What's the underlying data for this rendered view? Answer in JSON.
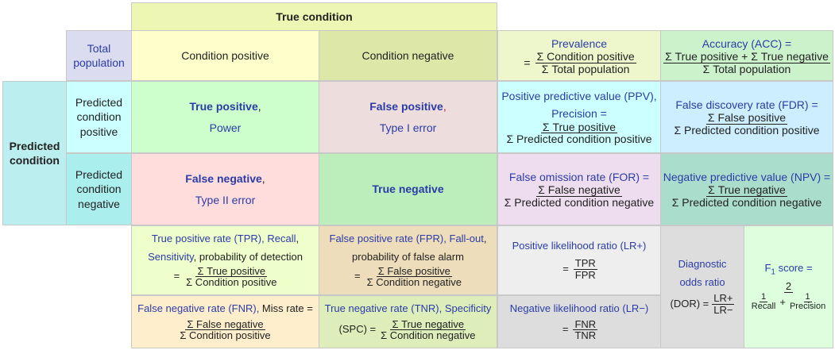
{
  "colors": {
    "true_condition_header": "#eef6b3",
    "total_population": "#dcdcf0",
    "condition_positive": "#ffffcc",
    "condition_negative": "#dde8a8",
    "prevalence": "#eef6cc",
    "accuracy": "#ccf2cc",
    "predicted_condition": "#bbeeee",
    "predicted_positive": "#ccffff",
    "predicted_negative": "#aaeeee",
    "true_positive": "#ccffcc",
    "false_positive": "#eedddd",
    "false_negative": "#ffdddd",
    "true_negative": "#bbeebb",
    "ppv": "#ccffff",
    "fdr": "#cceeff",
    "for": "#eeddee",
    "npv": "#aaddcc",
    "tpr": "#eeffcc",
    "fpr": "#eeddbb",
    "fnr": "#ffeecc",
    "tnr": "#ddeebb",
    "lr_pos": "#eeeeee",
    "lr_neg": "#dddddd",
    "dor": "#dddddd",
    "f1": "#ddffdd",
    "link_text": "#2b3ca8"
  },
  "true_condition": "True condition",
  "total_population": {
    "line1": "Total",
    "line2": "population"
  },
  "condition_positive": "Condition positive",
  "condition_negative": "Condition negative",
  "prevalence": {
    "title": "Prevalence",
    "equals": "=",
    "num": "Σ Condition positive",
    "den": "Σ Total population"
  },
  "accuracy": {
    "title": "Accuracy (ACC) =",
    "num": "Σ True positive + Σ True negative",
    "den": "Σ Total population"
  },
  "predicted_condition": {
    "line1": "Predicted",
    "line2": "condition"
  },
  "predicted_positive": {
    "line1": "Predicted",
    "line2": "condition",
    "line3": "positive"
  },
  "predicted_negative": {
    "line1": "Predicted",
    "line2": "condition",
    "line3": "negative"
  },
  "true_positive": {
    "title": "True positive",
    "comma": ",",
    "sub": "Power"
  },
  "false_positive": {
    "title": "False positive",
    "comma": ",",
    "sub": "Type I error"
  },
  "false_negative": {
    "title": "False negative",
    "comma": ",",
    "sub": "Type II error"
  },
  "true_negative": {
    "title": "True negative"
  },
  "ppv": {
    "line1": "Positive predictive value (PPV),",
    "line2": "Precision =",
    "num": "Σ True positive",
    "den": "Σ Predicted condition positive"
  },
  "fdr": {
    "title": "False discovery rate (FDR) =",
    "num": "Σ False positive",
    "den": "Σ Predicted condition positive"
  },
  "for": {
    "title": "False omission rate (FOR) =",
    "num": "Σ False negative",
    "den": "Σ Predicted condition negative"
  },
  "npv": {
    "title": "Negative predictive value (NPV) =",
    "num": "Σ True negative",
    "den": "Σ Predicted condition negative"
  },
  "tpr": {
    "part1": "True positive rate (TPR), ",
    "part2": "Recall",
    "part3": ",",
    "part4": "Sensitivity",
    "part5": ", probability of detection",
    "equals": "=",
    "num": "Σ True positive",
    "den": "Σ Condition positive"
  },
  "fpr": {
    "part1": "False positive rate (FPR), ",
    "part2": "Fall-out",
    "part3": ",",
    "part4": "probability of false alarm",
    "equals": "=",
    "num": "Σ False positive",
    "den": "Σ Condition negative"
  },
  "lr_pos": {
    "title": "Positive likelihood ratio (LR+)",
    "equals": "=",
    "num": "TPR",
    "den": "FPR"
  },
  "dor": {
    "line1": "Diagnostic",
    "line2": "odds ratio",
    "line3": "(DOR) =",
    "num": "LR+",
    "den": "LR−"
  },
  "f1": {
    "f": "F",
    "sub": "1",
    "title_rest": " score =",
    "num": "2",
    "one_a": "1",
    "recall": "Recall",
    "plus": "+",
    "one_b": "1",
    "precision": "Precision"
  },
  "fnr": {
    "part1": "False negative rate (FNR), ",
    "part2": "Miss rate =",
    "num": "Σ False negative",
    "den": "Σ Condition positive"
  },
  "tnr": {
    "part1": "True negative rate (TNR), ",
    "part2": "Specificity",
    "part3": "(SPC) =",
    "num": "Σ True negative",
    "den": "Σ Condition negative"
  },
  "lr_neg": {
    "title": "Negative likelihood ratio (LR−)",
    "equals": "=",
    "num": "FNR",
    "den": "TNR"
  }
}
